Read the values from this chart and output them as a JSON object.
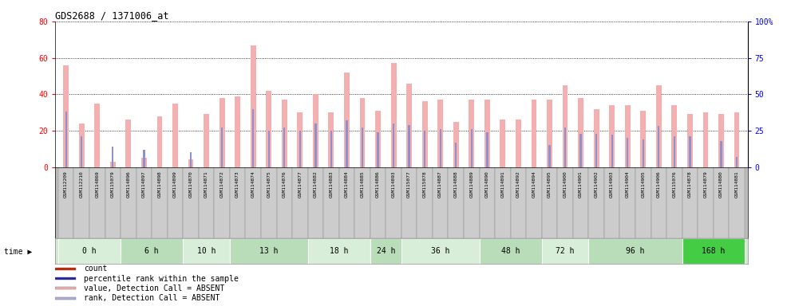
{
  "title": "GDS2688 / 1371006_at",
  "sample_labels": [
    "GSM112209",
    "GSM112210",
    "GSM114869",
    "GSM115079",
    "GSM114896",
    "GSM114897",
    "GSM114898",
    "GSM114899",
    "GSM114870",
    "GSM114871",
    "GSM114872",
    "GSM114873",
    "GSM114874",
    "GSM114875",
    "GSM114876",
    "GSM114877",
    "GSM114882",
    "GSM114883",
    "GSM114884",
    "GSM114885",
    "GSM114886",
    "GSM114893",
    "GSM115077",
    "GSM115078",
    "GSM114887",
    "GSM114888",
    "GSM114889",
    "GSM114890",
    "GSM114891",
    "GSM114892",
    "GSM114894",
    "GSM114895",
    "GSM114900",
    "GSM114901",
    "GSM114902",
    "GSM114903",
    "GSM114904",
    "GSM114905",
    "GSM114906",
    "GSM115076",
    "GSM114878",
    "GSM114879",
    "GSM114880",
    "GSM114881"
  ],
  "pink_values": [
    56,
    24,
    35,
    3,
    26,
    5,
    28,
    35,
    4,
    29,
    38,
    39,
    67,
    42,
    37,
    30,
    40,
    30,
    52,
    38,
    31,
    57,
    46,
    36,
    37,
    25,
    37,
    37,
    26,
    26,
    37,
    37,
    45,
    38,
    32,
    34,
    34,
    31,
    45,
    34,
    29,
    30,
    29,
    30
  ],
  "blue_values": [
    38,
    21,
    0,
    14,
    0,
    12,
    0,
    0,
    10,
    0,
    27,
    0,
    40,
    25,
    27,
    25,
    30,
    25,
    32,
    27,
    24,
    30,
    29,
    25,
    26,
    17,
    26,
    24,
    0,
    0,
    0,
    15,
    27,
    23,
    23,
    22,
    20,
    19,
    28,
    21,
    21,
    0,
    18,
    7
  ],
  "time_groups": [
    {
      "label": "0 h",
      "start": 0,
      "end": 4,
      "color": "#d8eed8"
    },
    {
      "label": "6 h",
      "start": 4,
      "end": 8,
      "color": "#b8ddb8"
    },
    {
      "label": "10 h",
      "start": 8,
      "end": 11,
      "color": "#d8eed8"
    },
    {
      "label": "13 h",
      "start": 11,
      "end": 16,
      "color": "#b8ddb8"
    },
    {
      "label": "18 h",
      "start": 16,
      "end": 20,
      "color": "#d8eed8"
    },
    {
      "label": "24 h",
      "start": 20,
      "end": 22,
      "color": "#b8ddb8"
    },
    {
      "label": "36 h",
      "start": 22,
      "end": 27,
      "color": "#d8eed8"
    },
    {
      "label": "48 h",
      "start": 27,
      "end": 31,
      "color": "#b8ddb8"
    },
    {
      "label": "72 h",
      "start": 31,
      "end": 34,
      "color": "#d8eed8"
    },
    {
      "label": "96 h",
      "start": 34,
      "end": 40,
      "color": "#b8ddb8"
    },
    {
      "label": "168 h",
      "start": 40,
      "end": 44,
      "color": "#44cc44"
    }
  ],
  "ylim_left": [
    0,
    80
  ],
  "ylim_right": [
    0,
    100
  ],
  "yticks_left": [
    0,
    20,
    40,
    60,
    80
  ],
  "yticks_right": [
    0,
    25,
    50,
    75,
    100
  ],
  "ytick_labels_right": [
    "0",
    "25",
    "50",
    "75",
    "100%"
  ],
  "pink_color": "#f4b0b0",
  "blue_color": "#9090cc",
  "bg_color": "#ffffff",
  "xtick_bg": "#cccccc",
  "legend_items": [
    {
      "color": "#cc2200",
      "marker": "s",
      "label": "count"
    },
    {
      "color": "#2222aa",
      "marker": "s",
      "label": "percentile rank within the sample"
    },
    {
      "color": "#f4b0b0",
      "marker": "s",
      "label": "value, Detection Call = ABSENT"
    },
    {
      "color": "#b0b0dd",
      "marker": "s",
      "label": "rank, Detection Call = ABSENT"
    }
  ]
}
